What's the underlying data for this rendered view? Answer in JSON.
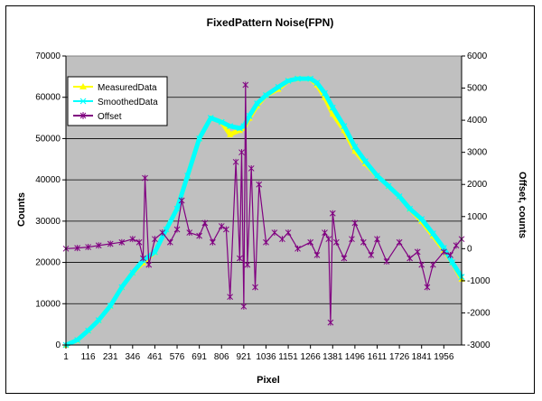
{
  "chart_data": {
    "type": "line",
    "title": "FixedPattern Noise(FPN)",
    "xlabel": "Pixel",
    "ylabel": "Counts",
    "y2label": "Offset, counts",
    "xlim": [
      1,
      2048
    ],
    "ylim": [
      0,
      70000
    ],
    "y2lim": [
      -3000,
      6000
    ],
    "x_tick_labels": [
      "1",
      "116",
      "231",
      "346",
      "461",
      "576",
      "691",
      "806",
      "921",
      "1036",
      "1151",
      "1266",
      "1381",
      "1496",
      "1611",
      "1726",
      "1841",
      "1956"
    ],
    "y_tick_labels": [
      "0",
      "10000",
      "20000",
      "30000",
      "40000",
      "50000",
      "60000",
      "70000"
    ],
    "y2_tick_labels": [
      "-3000",
      "-2000",
      "-1000",
      "0",
      "1000",
      "2000",
      "3000",
      "4000",
      "5000",
      "6000"
    ],
    "grid": true,
    "plot_background": "#c0c0c0",
    "legend": "top-left",
    "series": [
      {
        "name": "MeasuredData",
        "axis": "left",
        "color": "#ffff00",
        "marker": "triangle",
        "x": [
          1,
          60,
          116,
          170,
          231,
          290,
          346,
          400,
          461,
          520,
          576,
          630,
          691,
          750,
          806,
          850,
          900,
          921,
          950,
          990,
          1036,
          1100,
          1151,
          1200,
          1266,
          1300,
          1340,
          1381,
          1440,
          1496,
          1550,
          1611,
          1670,
          1726,
          1780,
          1841,
          1900,
          1956,
          2000,
          2048
        ],
        "values": [
          0,
          1200,
          3500,
          6000,
          9500,
          14000,
          17500,
          20000,
          22500,
          28000,
          33000,
          41000,
          50000,
          55000,
          54000,
          51000,
          52000,
          52500,
          55000,
          58000,
          60500,
          62000,
          64000,
          64500,
          64500,
          63000,
          60000,
          56000,
          52000,
          47000,
          44000,
          41000,
          38500,
          36000,
          33000,
          30000,
          26500,
          23000,
          20000,
          16000
        ]
      },
      {
        "name": "SmoothedData",
        "axis": "left",
        "color": "#00ffff",
        "marker": "x",
        "x": [
          1,
          60,
          116,
          170,
          231,
          290,
          346,
          400,
          461,
          520,
          576,
          630,
          691,
          750,
          806,
          850,
          900,
          921,
          950,
          990,
          1036,
          1100,
          1151,
          1200,
          1266,
          1300,
          1340,
          1381,
          1440,
          1496,
          1550,
          1611,
          1670,
          1726,
          1780,
          1841,
          1900,
          1956,
          2000,
          2048
        ],
        "values": [
          0,
          1200,
          3500,
          6000,
          9500,
          14000,
          17500,
          20500,
          22500,
          28000,
          33000,
          41000,
          50000,
          55000,
          54000,
          53000,
          52500,
          53000,
          55500,
          58500,
          60500,
          62500,
          64000,
          64500,
          64500,
          63500,
          61000,
          57500,
          53000,
          48000,
          44500,
          41000,
          38500,
          36000,
          33000,
          30500,
          27000,
          23500,
          20000,
          16500
        ]
      },
      {
        "name": "Offset",
        "axis": "right",
        "color": "#800080",
        "marker": "asterisk",
        "x": [
          1,
          60,
          116,
          170,
          231,
          290,
          346,
          380,
          400,
          410,
          430,
          461,
          500,
          540,
          576,
          600,
          640,
          691,
          720,
          760,
          806,
          830,
          850,
          880,
          900,
          910,
          921,
          930,
          940,
          960,
          980,
          1000,
          1036,
          1080,
          1120,
          1151,
          1200,
          1266,
          1300,
          1340,
          1360,
          1370,
          1381,
          1400,
          1440,
          1480,
          1496,
          1540,
          1580,
          1611,
          1660,
          1726,
          1780,
          1820,
          1841,
          1870,
          1900,
          1956,
          1990,
          2020,
          2048
        ],
        "values": [
          0,
          20,
          50,
          100,
          150,
          200,
          300,
          200,
          -300,
          2200,
          -500,
          300,
          500,
          200,
          600,
          1500,
          500,
          400,
          800,
          200,
          700,
          600,
          -1500,
          2700,
          -300,
          3000,
          -1800,
          5100,
          -500,
          2500,
          -1200,
          2000,
          200,
          500,
          300,
          500,
          0,
          200,
          -200,
          500,
          300,
          -2300,
          1100,
          200,
          -300,
          300,
          800,
          200,
          -200,
          300,
          -400,
          200,
          -300,
          -100,
          -500,
          -1200,
          -500,
          -100,
          -200,
          100,
          300
        ]
      }
    ]
  }
}
